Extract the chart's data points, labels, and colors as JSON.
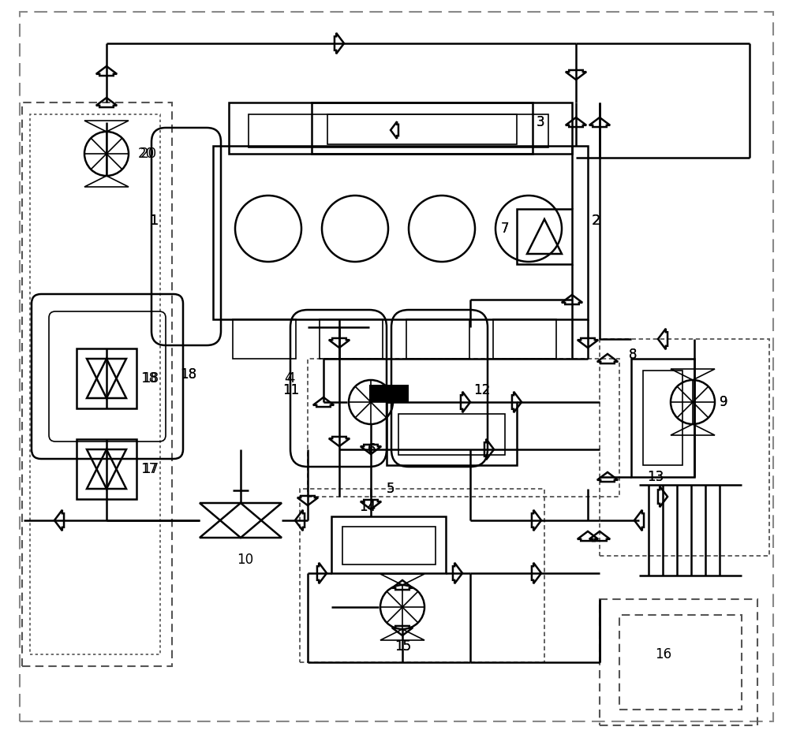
{
  "bg_color": "#ffffff",
  "line_color": "#000000",
  "lw": 1.8,
  "lw_thin": 1.2,
  "figsize": [
    10.0,
    9.31
  ]
}
